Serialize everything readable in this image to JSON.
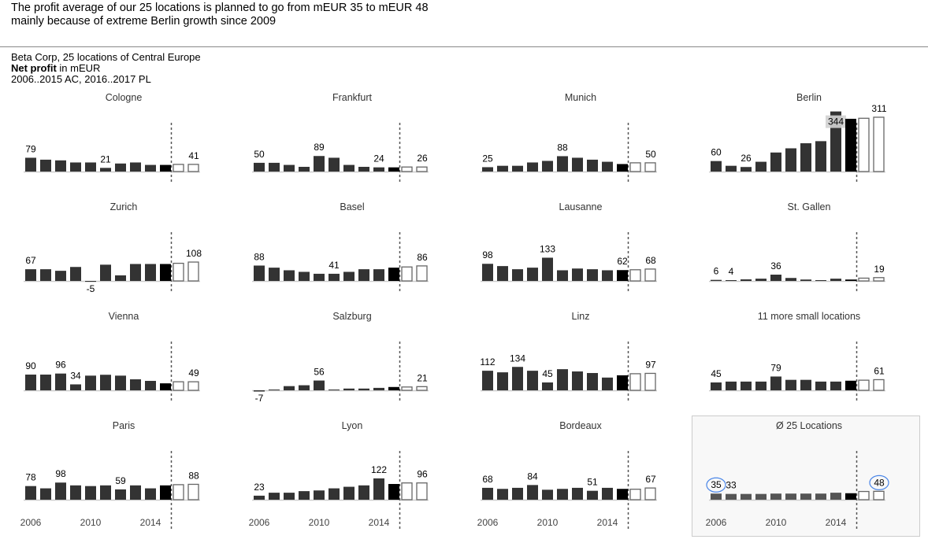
{
  "headline": {
    "line1": "The profit average of our 25 locations is planned to go from mEUR 35 to mEUR 48",
    "line2": "mainly because of extreme Berlin growth since 2009"
  },
  "subtitle": {
    "company": "Beta Corp, 25 locations of Central Europe",
    "measure_bold": "Net profit",
    "measure_unit": " in mEUR",
    "period": "2006..2015 AC, 2016..2017 PL"
  },
  "colors": {
    "actual": "#333333",
    "last_actual": "#000000",
    "planned_stroke": "#666666",
    "average": "#555555",
    "circle": "#4a86e8"
  },
  "chart_data": {
    "type": "bar",
    "title": "Net profit in mEUR",
    "x": [
      2006,
      2007,
      2008,
      2009,
      2010,
      2011,
      2012,
      2013,
      2014,
      2015,
      2016,
      2017
    ],
    "actual_years": "2006..2015",
    "planned_years": "2016..2017",
    "x_tick_labels": [
      "2006",
      "2010",
      "2014"
    ],
    "panels": [
      {
        "name": "Cologne",
        "values": [
          79,
          68,
          64,
          52,
          52,
          21,
          46,
          52,
          38,
          38,
          41,
          41
        ],
        "labels": [
          0,
          5,
          11
        ]
      },
      {
        "name": "Frankfurt",
        "values": [
          50,
          50,
          38,
          27,
          89,
          79,
          38,
          27,
          24,
          24,
          26,
          26
        ],
        "labels": [
          0,
          4,
          8,
          11
        ]
      },
      {
        "name": "Munich",
        "values": [
          25,
          33,
          33,
          52,
          61,
          88,
          79,
          68,
          56,
          43,
          50,
          50
        ],
        "labels": [
          0,
          5,
          11
        ]
      },
      {
        "name": "Berlin",
        "values": [
          60,
          33,
          26,
          56,
          109,
          133,
          162,
          174,
          344,
          302,
          305,
          311
        ],
        "labels": [
          0,
          2,
          8,
          11
        ]
      },
      {
        "name": "Zurich",
        "values": [
          67,
          67,
          58,
          80,
          -5,
          93,
          32,
          97,
          97,
          97,
          101,
          108
        ],
        "labels": [
          0,
          4,
          11
        ]
      },
      {
        "name": "Basel",
        "values": [
          88,
          76,
          61,
          52,
          41,
          41,
          52,
          67,
          67,
          76,
          80,
          86
        ],
        "labels": [
          0,
          5,
          11
        ]
      },
      {
        "name": "Lausanne",
        "values": [
          98,
          85,
          67,
          76,
          133,
          61,
          71,
          67,
          61,
          62,
          64,
          68
        ],
        "labels": [
          0,
          4,
          9,
          11
        ]
      },
      {
        "name": "St. Gallen",
        "values": [
          6,
          4,
          9,
          13,
          36,
          17,
          8,
          4,
          13,
          8,
          16,
          19
        ],
        "labels": [
          0,
          1,
          4,
          11
        ]
      },
      {
        "name": "Vienna",
        "values": [
          90,
          90,
          96,
          34,
          84,
          89,
          84,
          63,
          54,
          40,
          49,
          49
        ],
        "labels": [
          0,
          2,
          3,
          11
        ]
      },
      {
        "name": "Salzburg",
        "values": [
          -7,
          2,
          24,
          29,
          56,
          1,
          10,
          10,
          14,
          19,
          19,
          21
        ],
        "labels": [
          0,
          4,
          11
        ]
      },
      {
        "name": "Linz",
        "values": [
          112,
          103,
          134,
          112,
          45,
          121,
          108,
          99,
          73,
          86,
          95,
          97
        ],
        "labels": [
          0,
          2,
          4,
          11
        ]
      },
      {
        "name": "11 more small locations",
        "values": [
          45,
          50,
          50,
          50,
          79,
          60,
          60,
          50,
          50,
          55,
          58,
          61
        ],
        "labels": [
          0,
          4,
          11
        ]
      },
      {
        "name": "Paris",
        "values": [
          78,
          65,
          98,
          82,
          78,
          82,
          59,
          82,
          65,
          82,
          86,
          88
        ],
        "labels": [
          0,
          2,
          6,
          11
        ]
      },
      {
        "name": "Lyon",
        "values": [
          23,
          40,
          40,
          49,
          53,
          65,
          74,
          82,
          122,
          90,
          96,
          96
        ],
        "labels": [
          0,
          8,
          11
        ]
      },
      {
        "name": "Bordeaux",
        "values": [
          68,
          62,
          68,
          84,
          57,
          62,
          68,
          51,
          68,
          62,
          60,
          67
        ],
        "labels": [
          0,
          3,
          7,
          11
        ]
      },
      {
        "name": "Ø 25 Locations",
        "values": [
          35,
          33,
          33,
          33,
          35,
          35,
          35,
          35,
          40,
          37,
          47,
          48
        ],
        "labels": [
          0,
          1,
          11
        ],
        "circled": [
          0,
          11
        ],
        "average": true
      }
    ]
  }
}
